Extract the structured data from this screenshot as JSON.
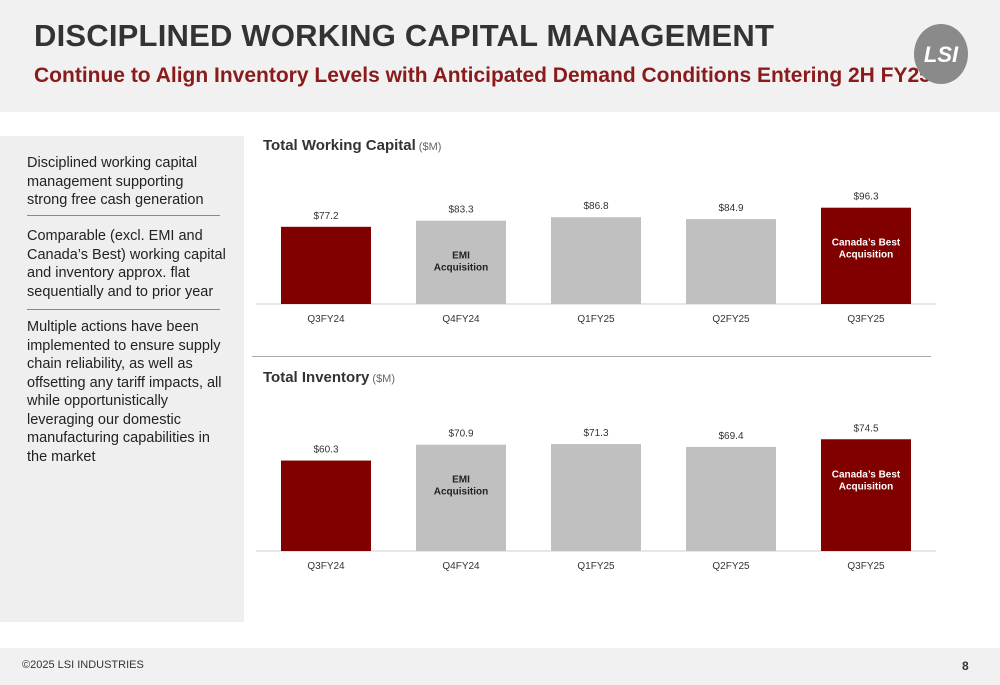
{
  "header": {
    "title": "DISCIPLINED WORKING CAPITAL MANAGEMENT",
    "subtitle": "Continue to Align Inventory Levels with Anticipated Demand Conditions Entering 2H FY25",
    "logo_text": "LSI"
  },
  "sidebar": {
    "bullets": [
      "Disciplined working capital management supporting strong free cash generation",
      "Comparable (excl. EMI and Canada’s Best) working capital and inventory approx. flat sequentially and to prior year",
      "Multiple actions have been implemented to ensure supply chain reliability, as well as offsetting any tariff impacts, all while opportunistically leveraging our domestic manufacturing capabilities in the market"
    ]
  },
  "charts": [
    {
      "title": "Total Working Capital",
      "unit": "($M)"
    },
    {
      "title": "Total Inventory",
      "unit": "($M)"
    }
  ],
  "colors": {
    "highlight": "#800000",
    "neutral": "#c0c0c0",
    "accent_text": "#8b1a1a"
  },
  "chart_data": [
    {
      "type": "bar",
      "title": "Total Working Capital ($M)",
      "categories": [
        "Q3FY24",
        "Q4FY24",
        "Q1FY25",
        "Q2FY25",
        "Q3FY25"
      ],
      "values": [
        77.2,
        83.3,
        86.8,
        84.9,
        96.3
      ],
      "value_labels": [
        "$77.2",
        "$83.3",
        "$86.8",
        "$84.9",
        "$96.3"
      ],
      "bar_colors": [
        "#800000",
        "#c0c0c0",
        "#c0c0c0",
        "#c0c0c0",
        "#800000"
      ],
      "bar_annotations": [
        "",
        "EMI Acquisition",
        "",
        "",
        "Canada’s Best Acquisition"
      ]
    },
    {
      "type": "bar",
      "title": "Total Inventory ($M)",
      "categories": [
        "Q3FY24",
        "Q4FY24",
        "Q1FY25",
        "Q2FY25",
        "Q3FY25"
      ],
      "values": [
        60.3,
        70.9,
        71.3,
        69.4,
        74.5
      ],
      "value_labels": [
        "$60.3",
        "$70.9",
        "$71.3",
        "$69.4",
        "$74.5"
      ],
      "bar_colors": [
        "#800000",
        "#c0c0c0",
        "#c0c0c0",
        "#c0c0c0",
        "#800000"
      ],
      "bar_annotations": [
        "",
        "EMI Acquisition",
        "",
        "",
        "Canada’s Best Acquisition"
      ]
    }
  ],
  "footer": {
    "copyright": "©2025 LSI INDUSTRIES",
    "page_number": "8"
  }
}
